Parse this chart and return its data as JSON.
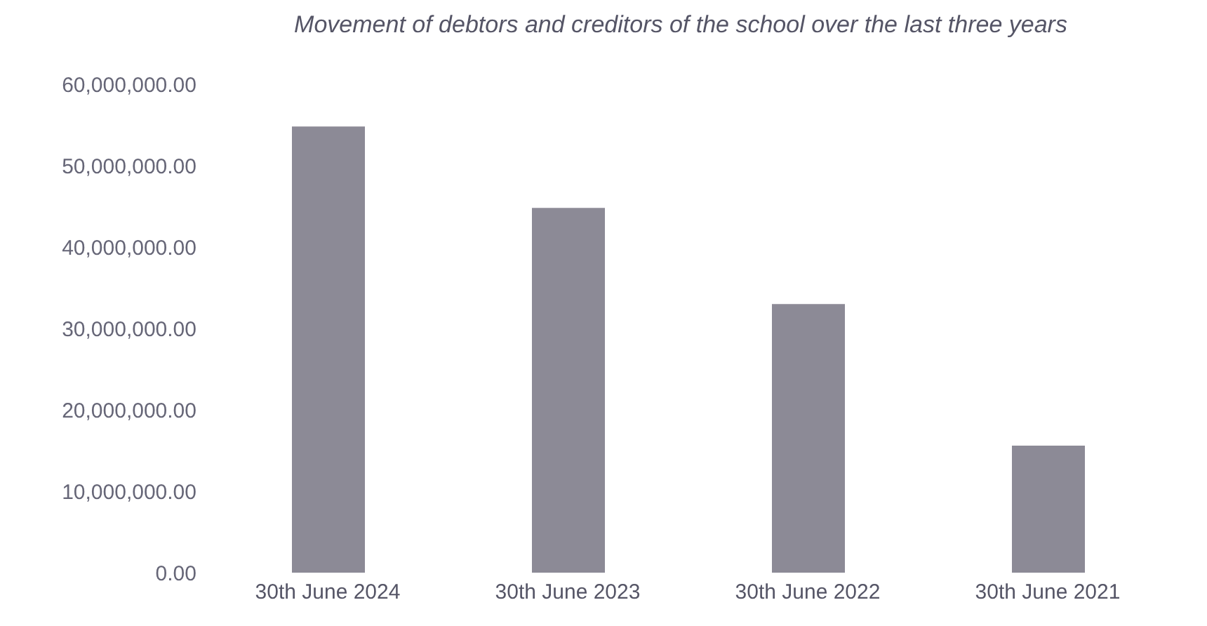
{
  "chart_data": {
    "type": "bar",
    "title": "Movement of debtors and creditors of the school over the last three years",
    "categories": [
      "30th June 2024",
      "30th June 2023",
      "30th June 2022",
      "30th June 2021"
    ],
    "values": [
      54800000,
      44800000,
      33000000,
      15600000
    ],
    "color": "#8c8a96",
    "ylim": [
      0,
      60000000
    ],
    "yticks": [
      {
        "value": 0,
        "label": "0.00"
      },
      {
        "value": 10000000,
        "label": "10,000,000.00"
      },
      {
        "value": 20000000,
        "label": "20,000,000.00"
      },
      {
        "value": 30000000,
        "label": "30,000,000.00"
      },
      {
        "value": 40000000,
        "label": "40,000,000.00"
      },
      {
        "value": 50000000,
        "label": "50,000,000.00"
      },
      {
        "value": 60000000,
        "label": "60,000,000.00"
      }
    ],
    "grid": false,
    "legend": false
  }
}
